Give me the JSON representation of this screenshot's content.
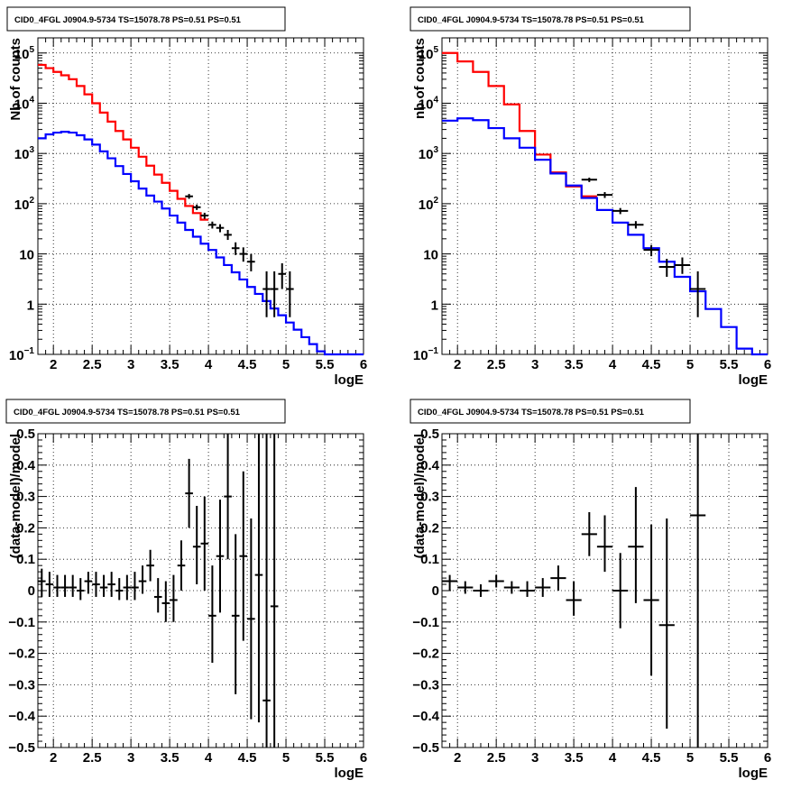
{
  "chart_data": [
    {
      "type": "line",
      "title": "CID0_4FGL J0904.9-5734 TS=15078.78 PS=0.51 PS=0.51",
      "xlabel": "logE",
      "ylabel": "Nb of counts",
      "xscale": "linear",
      "yscale": "log",
      "xlim": [
        1.8,
        6.0
      ],
      "ylim": [
        0.1,
        200000
      ],
      "grid": true,
      "xticks": [
        "2",
        "2.5",
        "3",
        "3.5",
        "4",
        "4.5",
        "5",
        "5.5",
        "6"
      ],
      "yticks": [
        {
          "value": 0.1,
          "base": "10",
          "exp": "−1"
        },
        {
          "value": 1,
          "base": "1",
          "exp": ""
        },
        {
          "value": 10,
          "base": "10",
          "exp": ""
        },
        {
          "value": 100,
          "base": "10",
          "exp": "2"
        },
        {
          "value": 1000,
          "base": "10",
          "exp": "3"
        },
        {
          "value": 10000,
          "base": "10",
          "exp": "4"
        },
        {
          "value": 100000,
          "base": "10",
          "exp": "5"
        }
      ],
      "series": [
        {
          "kind": "step",
          "color": "#ff0000",
          "edges": [
            1.8,
            1.9,
            2.0,
            2.1,
            2.2,
            2.3,
            2.4,
            2.5,
            2.6,
            2.7,
            2.8,
            2.9,
            3.0,
            3.1,
            3.2,
            3.3,
            3.4,
            3.5,
            3.6,
            3.7,
            3.8,
            3.9,
            4.0
          ],
          "values": [
            58000,
            50000,
            42000,
            36000,
            30000,
            22000,
            15000,
            10000,
            6500,
            4300,
            2800,
            1900,
            1300,
            860,
            570,
            380,
            260,
            180,
            125,
            90,
            65,
            48
          ]
        },
        {
          "kind": "step",
          "color": "#0000ff",
          "edges": [
            1.8,
            1.9,
            2.0,
            2.1,
            2.2,
            2.3,
            2.4,
            2.5,
            2.6,
            2.7,
            2.8,
            2.9,
            3.0,
            3.1,
            3.2,
            3.3,
            3.4,
            3.5,
            3.6,
            3.7,
            3.8,
            3.9,
            4.0,
            4.1,
            4.2,
            4.3,
            4.4,
            4.5,
            4.6,
            4.7,
            4.8,
            4.9,
            5.0,
            5.1,
            5.2,
            5.3,
            5.4,
            5.5,
            5.6,
            5.7,
            5.8,
            5.9,
            6.0
          ],
          "values": [
            2000,
            2400,
            2600,
            2700,
            2600,
            2300,
            1900,
            1500,
            1100,
            800,
            560,
            390,
            280,
            200,
            145,
            110,
            80,
            58,
            42,
            30,
            22,
            16,
            12,
            8.5,
            6,
            4.3,
            3.1,
            2.2,
            1.6,
            1.15,
            0.82,
            0.6,
            0.43,
            0.31,
            0.22,
            0.16,
            0.115,
            0.09,
            0.08,
            0.08,
            0.08,
            0.08
          ]
        },
        {
          "kind": "errorbar",
          "color": "#000000",
          "xerr": 0.05,
          "points": [
            {
              "x": 3.75,
              "y": 140,
              "lo": 125,
              "hi": 156
            },
            {
              "x": 3.85,
              "y": 85,
              "lo": 75,
              "hi": 96
            },
            {
              "x": 3.95,
              "y": 58,
              "lo": 50,
              "hi": 66
            },
            {
              "x": 4.05,
              "y": 38,
              "lo": 32,
              "hi": 44
            },
            {
              "x": 4.15,
              "y": 33,
              "lo": 27,
              "hi": 39
            },
            {
              "x": 4.25,
              "y": 24,
              "lo": 19,
              "hi": 30
            },
            {
              "x": 4.35,
              "y": 13,
              "lo": 9.5,
              "hi": 17
            },
            {
              "x": 4.45,
              "y": 10,
              "lo": 7,
              "hi": 13.5
            },
            {
              "x": 4.55,
              "y": 7,
              "lo": 4.5,
              "hi": 10
            },
            {
              "x": 4.75,
              "y": 2,
              "lo": 0.55,
              "hi": 4.5
            },
            {
              "x": 4.85,
              "y": 2,
              "lo": 0.55,
              "hi": 4.5
            },
            {
              "x": 4.95,
              "y": 4,
              "lo": 2,
              "hi": 6.5
            },
            {
              "x": 5.05,
              "y": 2,
              "lo": 0.55,
              "hi": 4.5
            }
          ]
        }
      ]
    },
    {
      "type": "line",
      "title": "CID0_4FGL J0904.9-5734 TS=15078.78 PS=0.51 PS=0.51",
      "xlabel": "logE",
      "ylabel": "nb of counts",
      "xscale": "linear",
      "yscale": "log",
      "xlim": [
        1.8,
        6.0
      ],
      "ylim": [
        0.1,
        200000
      ],
      "grid": true,
      "xticks": [
        "2",
        "2.5",
        "3",
        "3.5",
        "4",
        "4.5",
        "5",
        "5.5",
        "6"
      ],
      "yticks": [
        {
          "value": 0.1,
          "base": "10",
          "exp": "−1"
        },
        {
          "value": 1,
          "base": "1",
          "exp": ""
        },
        {
          "value": 10,
          "base": "10",
          "exp": ""
        },
        {
          "value": 100,
          "base": "10",
          "exp": "2"
        },
        {
          "value": 1000,
          "base": "10",
          "exp": "3"
        },
        {
          "value": 10000,
          "base": "10",
          "exp": "4"
        },
        {
          "value": 100000,
          "base": "10",
          "exp": "5"
        }
      ],
      "series": [
        {
          "kind": "step",
          "color": "#ff0000",
          "edges": [
            1.8,
            2.0,
            2.2,
            2.4,
            2.6,
            2.8,
            3.0,
            3.2,
            3.4,
            3.6,
            3.8
          ],
          "values": [
            100000,
            68000,
            42000,
            22000,
            9500,
            2800,
            950,
            420,
            220,
            140
          ]
        },
        {
          "kind": "step",
          "color": "#0000ff",
          "edges": [
            1.8,
            2.0,
            2.2,
            2.4,
            2.6,
            2.8,
            3.0,
            3.2,
            3.4,
            3.6,
            3.8,
            4.0,
            4.2,
            4.4,
            4.6,
            4.8,
            5.0,
            5.2,
            5.4,
            5.6,
            5.8,
            6.0
          ],
          "values": [
            4500,
            5000,
            4600,
            3200,
            2000,
            1300,
            750,
            400,
            230,
            130,
            75,
            42,
            24,
            13,
            7,
            3.5,
            1.8,
            0.8,
            0.35,
            0.13,
            0.1
          ]
        },
        {
          "kind": "errorbar",
          "color": "#000000",
          "xerr": 0.1,
          "points": [
            {
              "x": 3.7,
              "y": 300,
              "lo": 270,
              "hi": 330
            },
            {
              "x": 3.9,
              "y": 150,
              "lo": 130,
              "hi": 170
            },
            {
              "x": 4.1,
              "y": 72,
              "lo": 62,
              "hi": 82
            },
            {
              "x": 4.3,
              "y": 38,
              "lo": 32,
              "hi": 45
            },
            {
              "x": 4.5,
              "y": 12,
              "lo": 9,
              "hi": 15
            },
            {
              "x": 4.7,
              "y": 5.5,
              "lo": 3.5,
              "hi": 8
            },
            {
              "x": 4.9,
              "y": 6,
              "lo": 4,
              "hi": 8.5
            },
            {
              "x": 5.1,
              "y": 2,
              "lo": 0.55,
              "hi": 4.5
            }
          ]
        }
      ]
    },
    {
      "type": "scatter",
      "title": "CID0_4FGL J0904.9-5734 TS=15078.78 PS=0.51 PS=0.51",
      "xlabel": "logE",
      "ylabel": "(data-model)/model",
      "xscale": "linear",
      "yscale": "linear",
      "xlim": [
        1.8,
        6.0
      ],
      "ylim": [
        -0.5,
        0.5
      ],
      "grid": true,
      "xticks": [
        "2",
        "2.5",
        "3",
        "3.5",
        "4",
        "4.5",
        "5",
        "5.5",
        "6"
      ],
      "yticks": [
        "−0.5",
        "−0.4",
        "−0.3",
        "−0.2",
        "−0.1",
        "0",
        "0.1",
        "0.2",
        "0.3",
        "0.4",
        "0.5"
      ],
      "series": [
        {
          "kind": "errorbar",
          "color": "#000000",
          "xerr": 0.05,
          "points": [
            {
              "x": 1.85,
              "y": 0.03,
              "lo": -0.02,
              "hi": 0.07
            },
            {
              "x": 1.95,
              "y": 0.02,
              "lo": -0.02,
              "hi": 0.06
            },
            {
              "x": 2.05,
              "y": 0.01,
              "lo": -0.02,
              "hi": 0.05
            },
            {
              "x": 2.15,
              "y": 0.01,
              "lo": -0.02,
              "hi": 0.05
            },
            {
              "x": 2.25,
              "y": 0.01,
              "lo": -0.02,
              "hi": 0.05
            },
            {
              "x": 2.35,
              "y": 0.0,
              "lo": -0.03,
              "hi": 0.04
            },
            {
              "x": 2.45,
              "y": 0.03,
              "lo": -0.01,
              "hi": 0.06
            },
            {
              "x": 2.55,
              "y": 0.02,
              "lo": -0.02,
              "hi": 0.06
            },
            {
              "x": 2.65,
              "y": 0.01,
              "lo": -0.02,
              "hi": 0.05
            },
            {
              "x": 2.75,
              "y": 0.02,
              "lo": -0.02,
              "hi": 0.06
            },
            {
              "x": 2.85,
              "y": 0.0,
              "lo": -0.03,
              "hi": 0.04
            },
            {
              "x": 2.95,
              "y": 0.01,
              "lo": -0.03,
              "hi": 0.05
            },
            {
              "x": 3.05,
              "y": 0.01,
              "lo": -0.03,
              "hi": 0.06
            },
            {
              "x": 3.15,
              "y": 0.03,
              "lo": -0.01,
              "hi": 0.08
            },
            {
              "x": 3.25,
              "y": 0.08,
              "lo": 0.03,
              "hi": 0.13
            },
            {
              "x": 3.35,
              "y": -0.02,
              "lo": -0.07,
              "hi": 0.04
            },
            {
              "x": 3.45,
              "y": -0.04,
              "lo": -0.1,
              "hi": 0.03
            },
            {
              "x": 3.55,
              "y": -0.03,
              "lo": -0.1,
              "hi": 0.05
            },
            {
              "x": 3.65,
              "y": 0.08,
              "lo": 0.0,
              "hi": 0.16
            },
            {
              "x": 3.75,
              "y": 0.31,
              "lo": 0.2,
              "hi": 0.42
            },
            {
              "x": 3.85,
              "y": 0.14,
              "lo": 0.02,
              "hi": 0.27
            },
            {
              "x": 3.95,
              "y": 0.15,
              "lo": 0.0,
              "hi": 0.3
            },
            {
              "x": 4.05,
              "y": -0.08,
              "lo": -0.23,
              "hi": 0.08
            },
            {
              "x": 4.15,
              "y": 0.11,
              "lo": -0.07,
              "hi": 0.29
            },
            {
              "x": 4.25,
              "y": 0.3,
              "lo": 0.1,
              "hi": 0.5
            },
            {
              "x": 4.35,
              "y": -0.08,
              "lo": -0.33,
              "hi": 0.18
            },
            {
              "x": 4.45,
              "y": 0.11,
              "lo": -0.16,
              "hi": 0.38
            },
            {
              "x": 4.55,
              "y": -0.09,
              "lo": -0.41,
              "hi": 0.23
            },
            {
              "x": 4.65,
              "y": 0.05,
              "lo": -0.42,
              "hi": 0.5
            },
            {
              "x": 4.75,
              "y": -0.35,
              "lo": -0.5,
              "hi": 0.5
            },
            {
              "x": 4.85,
              "y": -0.05,
              "lo": -0.5,
              "hi": 0.5
            }
          ]
        }
      ]
    },
    {
      "type": "scatter",
      "title": "CID0_4FGL J0904.9-5734 TS=15078.78 PS=0.51 PS=0.51",
      "xlabel": "logE",
      "ylabel": "(data-model)/model",
      "xscale": "linear",
      "yscale": "linear",
      "xlim": [
        1.8,
        6.0
      ],
      "ylim": [
        -0.5,
        0.5
      ],
      "grid": true,
      "xticks": [
        "2",
        "2.5",
        "3",
        "3.5",
        "4",
        "4.5",
        "5",
        "5.5",
        "6"
      ],
      "yticks": [
        "−0.5",
        "−0.4",
        "−0.3",
        "−0.2",
        "−0.1",
        "0",
        "0.1",
        "0.2",
        "0.3",
        "0.4",
        "0.5"
      ],
      "series": [
        {
          "kind": "errorbar",
          "color": "#000000",
          "xerr": 0.1,
          "points": [
            {
              "x": 1.9,
              "y": 0.03,
              "lo": 0.0,
              "hi": 0.05
            },
            {
              "x": 2.1,
              "y": 0.01,
              "lo": -0.01,
              "hi": 0.03
            },
            {
              "x": 2.3,
              "y": 0.0,
              "lo": -0.02,
              "hi": 0.02
            },
            {
              "x": 2.5,
              "y": 0.03,
              "lo": 0.01,
              "hi": 0.05
            },
            {
              "x": 2.7,
              "y": 0.01,
              "lo": -0.01,
              "hi": 0.03
            },
            {
              "x": 2.9,
              "y": 0.0,
              "lo": -0.02,
              "hi": 0.03
            },
            {
              "x": 3.1,
              "y": 0.01,
              "lo": -0.02,
              "hi": 0.04
            },
            {
              "x": 3.3,
              "y": 0.04,
              "lo": 0.0,
              "hi": 0.08
            },
            {
              "x": 3.5,
              "y": -0.03,
              "lo": -0.08,
              "hi": 0.03
            },
            {
              "x": 3.7,
              "y": 0.18,
              "lo": 0.11,
              "hi": 0.25
            },
            {
              "x": 3.9,
              "y": 0.14,
              "lo": 0.06,
              "hi": 0.24
            },
            {
              "x": 4.1,
              "y": 0.0,
              "lo": -0.12,
              "hi": 0.12
            },
            {
              "x": 4.3,
              "y": 0.14,
              "lo": -0.04,
              "hi": 0.33
            },
            {
              "x": 4.5,
              "y": -0.03,
              "lo": -0.27,
              "hi": 0.21
            },
            {
              "x": 4.7,
              "y": -0.11,
              "lo": -0.44,
              "hi": 0.23
            },
            {
              "x": 5.1,
              "y": 0.24,
              "lo": -0.5,
              "hi": 0.5
            }
          ]
        }
      ]
    }
  ]
}
